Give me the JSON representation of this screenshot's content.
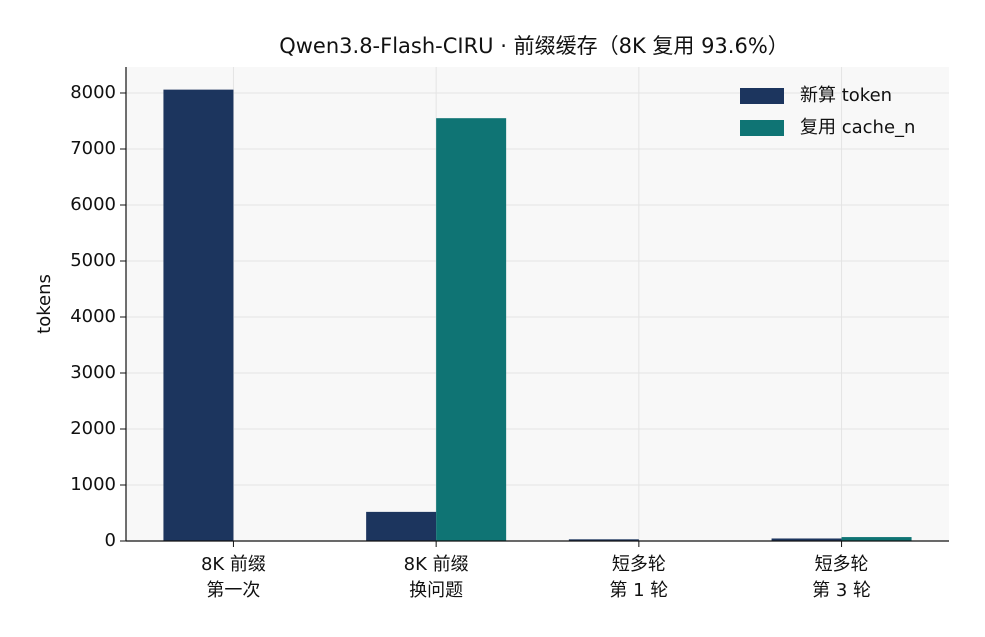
{
  "chart_data": {
    "type": "bar",
    "title": "Qwen3.8-Flash-CIRU · 前缀缓存（8K 复用 93.6%）",
    "ylabel": "tokens",
    "categories": [
      [
        "8K 前缀",
        "第一次"
      ],
      [
        "8K 前缀",
        "换问题"
      ],
      [
        "短多轮",
        "第 1 轮"
      ],
      [
        "短多轮",
        "第 3 轮"
      ]
    ],
    "series": [
      {
        "name": "新算 token",
        "color": "#1c355e",
        "values": [
          8060,
          520,
          30,
          45
        ]
      },
      {
        "name": "复用 cache_n",
        "color": "#0f7474",
        "values": [
          0,
          7550,
          0,
          70
        ]
      }
    ],
    "ylim": [
      0,
      8464
    ],
    "yticks": [
      0,
      1000,
      2000,
      3000,
      4000,
      5000,
      6000,
      7000,
      8000
    ],
    "grid": true,
    "legend": "upper right"
  }
}
